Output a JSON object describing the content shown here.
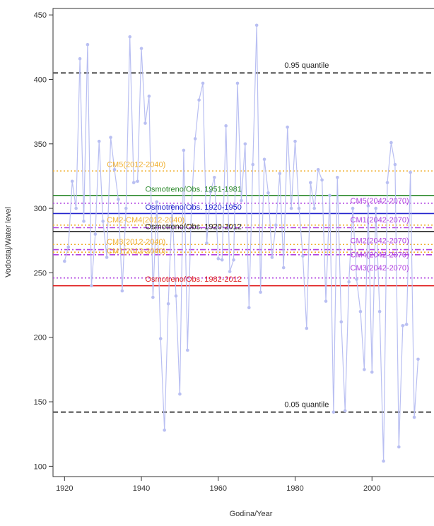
{
  "chart_data": {
    "type": "line",
    "xlabel": "Godina/Year",
    "ylabel": "Vodostaj/Water level",
    "xlim": [
      1917,
      2020
    ],
    "ylim": [
      92,
      455
    ],
    "x_ticks": [
      1920,
      1940,
      1960,
      1980,
      2000
    ],
    "y_ticks": [
      100,
      150,
      200,
      250,
      300,
      350,
      400,
      450
    ],
    "grid": false,
    "legend": "none",
    "series": [
      {
        "color": "#b9bff2",
        "x": [
          1920,
          1921,
          1922,
          1923,
          1924,
          1925,
          1926,
          1927,
          1928,
          1929,
          1930,
          1931,
          1932,
          1933,
          1934,
          1935,
          1936,
          1937,
          1938,
          1939,
          1940,
          1941,
          1942,
          1943,
          1944,
          1945,
          1946,
          1947,
          1948,
          1949,
          1950,
          1951,
          1952,
          1953,
          1954,
          1955,
          1956,
          1957,
          1958,
          1959,
          1960,
          1961,
          1962,
          1963,
          1964,
          1965,
          1966,
          1967,
          1968,
          1969,
          1970,
          1971,
          1972,
          1973,
          1974,
          1975,
          1976,
          1977,
          1978,
          1979,
          1980,
          1981,
          1982,
          1983,
          1984,
          1985,
          1986,
          1987,
          1988,
          1989,
          1990,
          1991,
          1992,
          1993,
          1994,
          1995,
          1996,
          1997,
          1998,
          1999,
          2000,
          2001,
          2002,
          2003,
          2004,
          2005,
          2006,
          2007,
          2008,
          2009,
          2010,
          2011,
          2012
        ],
        "y": [
          259,
          270,
          321,
          300,
          416,
          290,
          427,
          240,
          280,
          352,
          290,
          262,
          355,
          330,
          307,
          236,
          300,
          433,
          320,
          321,
          424,
          366,
          387,
          231,
          305,
          199,
          128,
          226,
          302,
          232,
          156,
          345,
          190,
          300,
          354,
          384,
          397,
          273,
          313,
          324,
          261,
          260,
          364,
          251,
          260,
          397,
          306,
          350,
          223,
          334,
          442,
          235,
          338,
          312,
          262,
          287,
          327,
          254,
          363,
          300,
          352,
          300,
          263,
          207,
          320,
          300,
          330,
          322,
          228,
          310,
          142,
          324,
          212,
          143,
          243,
          300,
          245,
          220,
          175,
          302,
          173,
          300,
          220,
          104,
          320,
          351,
          334,
          115,
          209,
          210,
          328,
          138,
          183
        ]
      }
    ],
    "reference_lines": [
      {
        "label": "0.95 quantile",
        "value": 405,
        "color": "#555555",
        "style": "dashed"
      },
      {
        "label": "CM5(2012-2040)",
        "value": 329,
        "color": "#f0b030",
        "style": "dotted"
      },
      {
        "label": "Osmotreno/Obs. 1951-1981",
        "value": 310,
        "color": "#2e8b2e",
        "style": "solid"
      },
      {
        "label": "Osmotreno/Obs. 1920-1950",
        "value": 296,
        "color": "#2222cc",
        "style": "solid"
      },
      {
        "label": "CM2-CM4(2012-2040)",
        "value": 287,
        "color": "#f0b030",
        "style": "dotted"
      },
      {
        "label": "Osmotreno/Obs. 1920-2012",
        "value": 282,
        "color": "#222222",
        "style": "solid"
      },
      {
        "label": "CM5(2042-2070)",
        "value": 304,
        "color": "#b040e0",
        "style": "dotted"
      },
      {
        "label": "CM1(2042-2070)",
        "value": 285,
        "color": "#b040e0",
        "style": "dotdash"
      },
      {
        "label": "CM3(2012-2040)",
        "value": 272,
        "color": "#f0b030",
        "style": "dotted"
      },
      {
        "label": "CM1(2012-2040)",
        "value": 266,
        "color": "#f0b030",
        "style": "dotted"
      },
      {
        "label": "CM2(2042-2070)",
        "value": 268,
        "color": "#b040e0",
        "style": "dotdash"
      },
      {
        "label": "CM4(2042-2070)",
        "value": 264,
        "color": "#b040e0",
        "style": "dotdash"
      },
      {
        "label": "CM3(2042-2070)",
        "value": 246,
        "color": "#b040e0",
        "style": "dotted"
      },
      {
        "label": "Osmotreno/Obs. 1982-2012",
        "value": 240,
        "color": "#e02020",
        "style": "solid"
      },
      {
        "label": "0.05 quantile",
        "value": 142,
        "color": "#555555",
        "style": "dashed"
      }
    ],
    "labels": [
      {
        "text": "0.95 quantile",
        "x": 1983,
        "y": 409,
        "anchor": "middle",
        "color": "#222222"
      },
      {
        "text": "CM5(2012-2040)",
        "x": 1931,
        "y": 332,
        "anchor": "start",
        "color": "#f0b030"
      },
      {
        "text": "Osmotreno/Obs. 1951-1981",
        "x": 1941,
        "y": 313,
        "anchor": "start",
        "color": "#2e8b2e"
      },
      {
        "text": "Osmotreno/Obs. 1920-1950",
        "x": 1941,
        "y": 299,
        "anchor": "start",
        "color": "#2222cc"
      },
      {
        "text": "CM5(2042-2070)",
        "x": 2002,
        "y": 304,
        "anchor": "middle",
        "color": "#b040e0"
      },
      {
        "text": "CM2-CM4(2012-2040)",
        "x": 1931,
        "y": 289,
        "anchor": "start",
        "color": "#f0b030"
      },
      {
        "text": "CM1(2042-2070)",
        "x": 2002,
        "y": 289,
        "anchor": "middle",
        "color": "#b040e0"
      },
      {
        "text": "Osmotreno/Obs. 1920-2012",
        "x": 1941,
        "y": 284,
        "anchor": "start",
        "color": "#222222"
      },
      {
        "text": "CM3(2012-2040)",
        "x": 1931,
        "y": 272,
        "anchor": "start",
        "color": "#f0b030"
      },
      {
        "text": "CM1(2012-2040)",
        "x": 1931,
        "y": 265,
        "anchor": "start",
        "color": "#f0b030"
      },
      {
        "text": "CM2(2042-2070)",
        "x": 2002,
        "y": 273,
        "anchor": "middle",
        "color": "#b040e0"
      },
      {
        "text": "CM4(2042-2070)",
        "x": 2002,
        "y": 262,
        "anchor": "middle",
        "color": "#b040e0"
      },
      {
        "text": "CM3(2042-2070)",
        "x": 2002,
        "y": 252,
        "anchor": "middle",
        "color": "#b040e0"
      },
      {
        "text": "Osmotreno/Obs. 1982-2012",
        "x": 1941,
        "y": 243,
        "anchor": "start",
        "color": "#e02020"
      },
      {
        "text": "0.05 quantile",
        "x": 1983,
        "y": 146,
        "anchor": "middle",
        "color": "#222222"
      }
    ]
  }
}
